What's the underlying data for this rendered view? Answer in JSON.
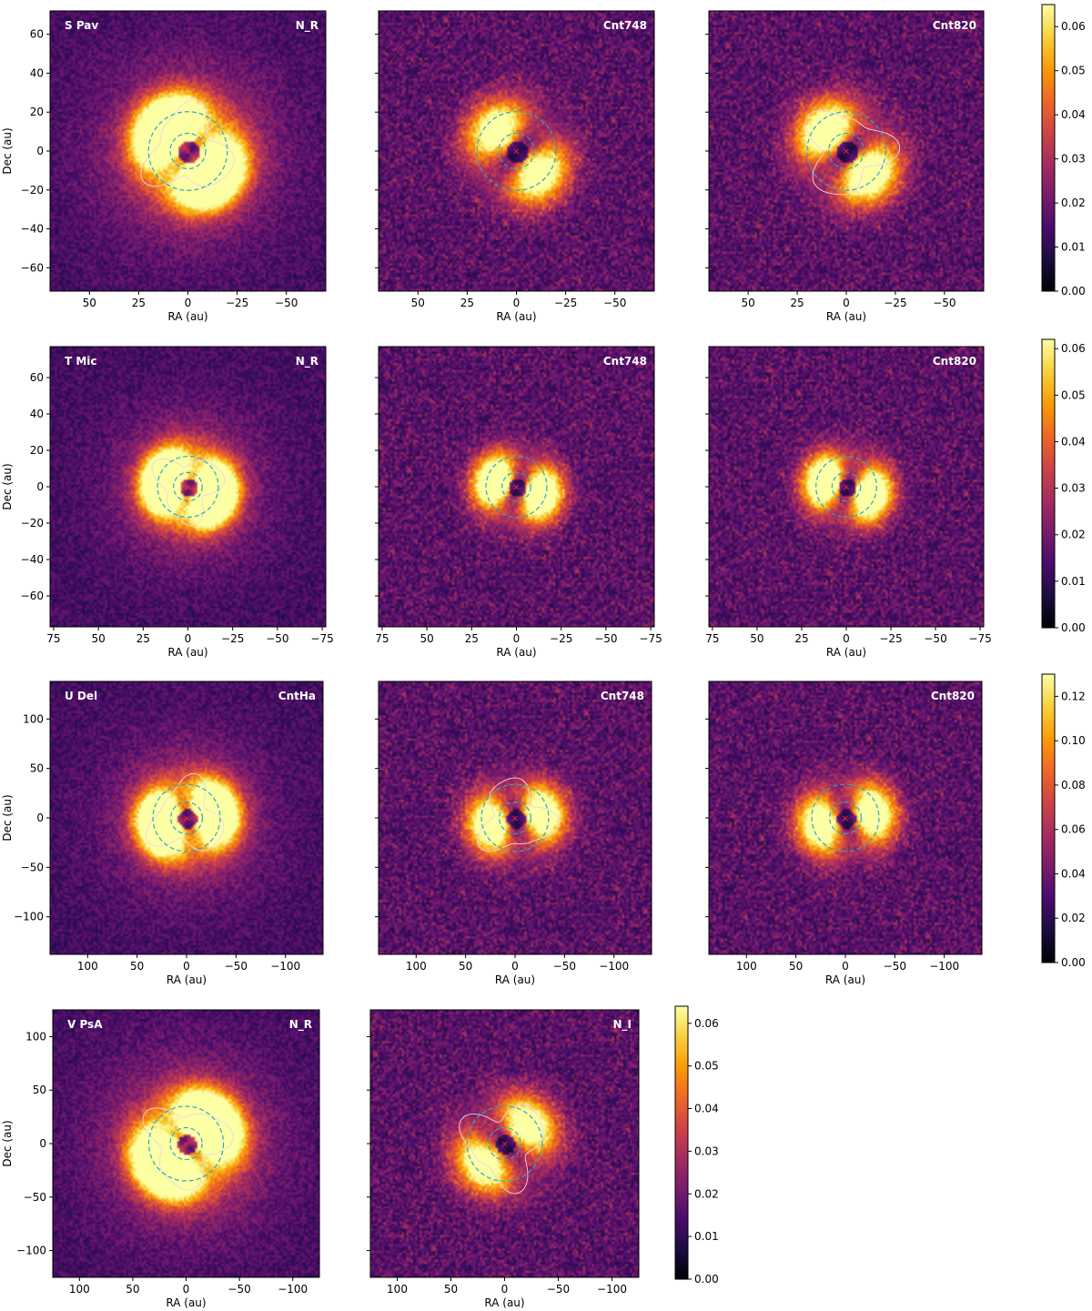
{
  "figure": {
    "colormap": "inferno"
  },
  "colormap_stops": [
    "#000004",
    "#1b0c41",
    "#4a0c6b",
    "#781c6d",
    "#a52c60",
    "#cf4446",
    "#ed6925",
    "#fb9b06",
    "#f7d13d",
    "#fcffa4"
  ],
  "annotation_colors": {
    "ring": "#2ba8c9",
    "contour": "#f0d2f0",
    "star": "#ff2a2a",
    "label": "#ffffff"
  },
  "chart_data": [
    {
      "type": "heatmap",
      "row": 0,
      "col": 0,
      "star": "S Pav",
      "filter": "N_R",
      "xlabel": "RA (au)",
      "ylabel": "Dec (au)",
      "xlim": [
        70,
        -70
      ],
      "ylim": [
        -72,
        72
      ],
      "xticks": [
        50,
        25,
        0,
        -25,
        -50
      ],
      "yticks": [
        60,
        40,
        20,
        0,
        -20,
        -40,
        -60
      ],
      "rings_au": [
        9,
        20
      ],
      "contour": true,
      "peak": 0.06
    },
    {
      "type": "heatmap",
      "row": 0,
      "col": 1,
      "star": "",
      "filter": "Cnt748",
      "xlabel": "RA (au)",
      "ylabel": "",
      "xlim": [
        70,
        -70
      ],
      "ylim": [
        -72,
        72
      ],
      "xticks": [
        50,
        25,
        0,
        -25,
        -50
      ],
      "yticks": [],
      "rings_au": [
        9,
        20
      ],
      "contour": false,
      "peak": 0.045
    },
    {
      "type": "heatmap",
      "row": 0,
      "col": 2,
      "star": "",
      "filter": "Cnt820",
      "xlabel": "RA (au)",
      "ylabel": "",
      "xlim": [
        70,
        -70
      ],
      "ylim": [
        -72,
        72
      ],
      "xticks": [
        50,
        25,
        0,
        -25,
        -50
      ],
      "yticks": [],
      "rings_au": [
        9,
        20
      ],
      "contour": true,
      "peak": 0.05
    },
    {
      "type": "heatmap",
      "row": 1,
      "col": 0,
      "star": "T Mic",
      "filter": "N_R",
      "xlabel": "RA (au)",
      "ylabel": "Dec (au)",
      "xlim": [
        77,
        -77
      ],
      "ylim": [
        -77,
        77
      ],
      "xticks": [
        75,
        50,
        25,
        0,
        -25,
        -50,
        -75
      ],
      "yticks": [
        60,
        40,
        20,
        0,
        -20,
        -40,
        -60
      ],
      "rings_au": [
        8,
        17
      ],
      "contour": true,
      "peak": 0.06
    },
    {
      "type": "heatmap",
      "row": 1,
      "col": 1,
      "star": "",
      "filter": "Cnt748",
      "xlabel": "RA (au)",
      "ylabel": "",
      "xlim": [
        77,
        -77
      ],
      "ylim": [
        -77,
        77
      ],
      "xticks": [
        75,
        50,
        25,
        0,
        -25,
        -50,
        -75
      ],
      "yticks": [],
      "rings_au": [
        8,
        17
      ],
      "contour": false,
      "peak": 0.055
    },
    {
      "type": "heatmap",
      "row": 1,
      "col": 2,
      "star": "",
      "filter": "Cnt820",
      "xlabel": "RA (au)",
      "ylabel": "",
      "xlim": [
        77,
        -77
      ],
      "ylim": [
        -77,
        77
      ],
      "xticks": [
        75,
        50,
        25,
        0,
        -25,
        -50,
        -75
      ],
      "yticks": [],
      "rings_au": [
        8,
        17
      ],
      "contour": false,
      "peak": 0.055
    },
    {
      "type": "heatmap",
      "row": 2,
      "col": 0,
      "star": "U Del",
      "filter": "CntHa",
      "xlabel": "RA (au)",
      "ylabel": "Dec (au)",
      "xlim": [
        138,
        -138
      ],
      "ylim": [
        -138,
        138
      ],
      "xticks": [
        100,
        50,
        0,
        -50,
        -100
      ],
      "yticks": [
        100,
        50,
        0,
        -50,
        -100
      ],
      "rings_au": [
        16,
        34
      ],
      "contour": true,
      "peak": 0.1
    },
    {
      "type": "heatmap",
      "row": 2,
      "col": 1,
      "star": "",
      "filter": "Cnt748",
      "xlabel": "RA (au)",
      "ylabel": "",
      "xlim": [
        138,
        -138
      ],
      "ylim": [
        -138,
        138
      ],
      "xticks": [
        100,
        50,
        0,
        -50,
        -100
      ],
      "yticks": [],
      "rings_au": [
        16,
        34
      ],
      "contour": true,
      "peak": 0.1
    },
    {
      "type": "heatmap",
      "row": 2,
      "col": 2,
      "star": "",
      "filter": "Cnt820",
      "xlabel": "RA (au)",
      "ylabel": "",
      "xlim": [
        138,
        -138
      ],
      "ylim": [
        -138,
        138
      ],
      "xticks": [
        100,
        50,
        0,
        -50,
        -100
      ],
      "yticks": [],
      "rings_au": [
        16,
        34
      ],
      "contour": false,
      "peak": 0.1
    },
    {
      "type": "heatmap",
      "row": 3,
      "col": 0,
      "star": "V PsA",
      "filter": "N_R",
      "xlabel": "RA (au)",
      "ylabel": "Dec (au)",
      "xlim": [
        125,
        -125
      ],
      "ylim": [
        -125,
        125
      ],
      "xticks": [
        100,
        50,
        0,
        -50,
        -100
      ],
      "yticks": [
        100,
        50,
        0,
        -50,
        -100
      ],
      "rings_au": [
        15,
        35
      ],
      "contour": true,
      "peak": 0.06
    },
    {
      "type": "heatmap",
      "row": 3,
      "col": 1,
      "star": "",
      "filter": "N_I",
      "xlabel": "RA (au)",
      "ylabel": "",
      "xlim": [
        125,
        -125
      ],
      "ylim": [
        -125,
        125
      ],
      "xticks": [
        100,
        50,
        0,
        -50,
        -100
      ],
      "yticks": [],
      "rings_au": [
        15,
        35
      ],
      "contour": true,
      "peak": 0.045
    }
  ],
  "colorbars": [
    {
      "row": 0,
      "range": [
        0,
        0.065
      ],
      "ticks": [
        "0.00",
        "0.01",
        "0.02",
        "0.03",
        "0.04",
        "0.05",
        "0.06"
      ]
    },
    {
      "row": 1,
      "range": [
        0,
        0.062
      ],
      "ticks": [
        "0.00",
        "0.01",
        "0.02",
        "0.03",
        "0.04",
        "0.05",
        "0.06"
      ]
    },
    {
      "row": 2,
      "range": [
        0,
        0.13
      ],
      "ticks": [
        "0.00",
        "0.02",
        "0.04",
        "0.06",
        "0.08",
        "0.10",
        "0.12"
      ]
    },
    {
      "row": 3,
      "range": [
        0,
        0.064
      ],
      "ticks": [
        "0.00",
        "0.01",
        "0.02",
        "0.03",
        "0.04",
        "0.05",
        "0.06"
      ]
    }
  ]
}
